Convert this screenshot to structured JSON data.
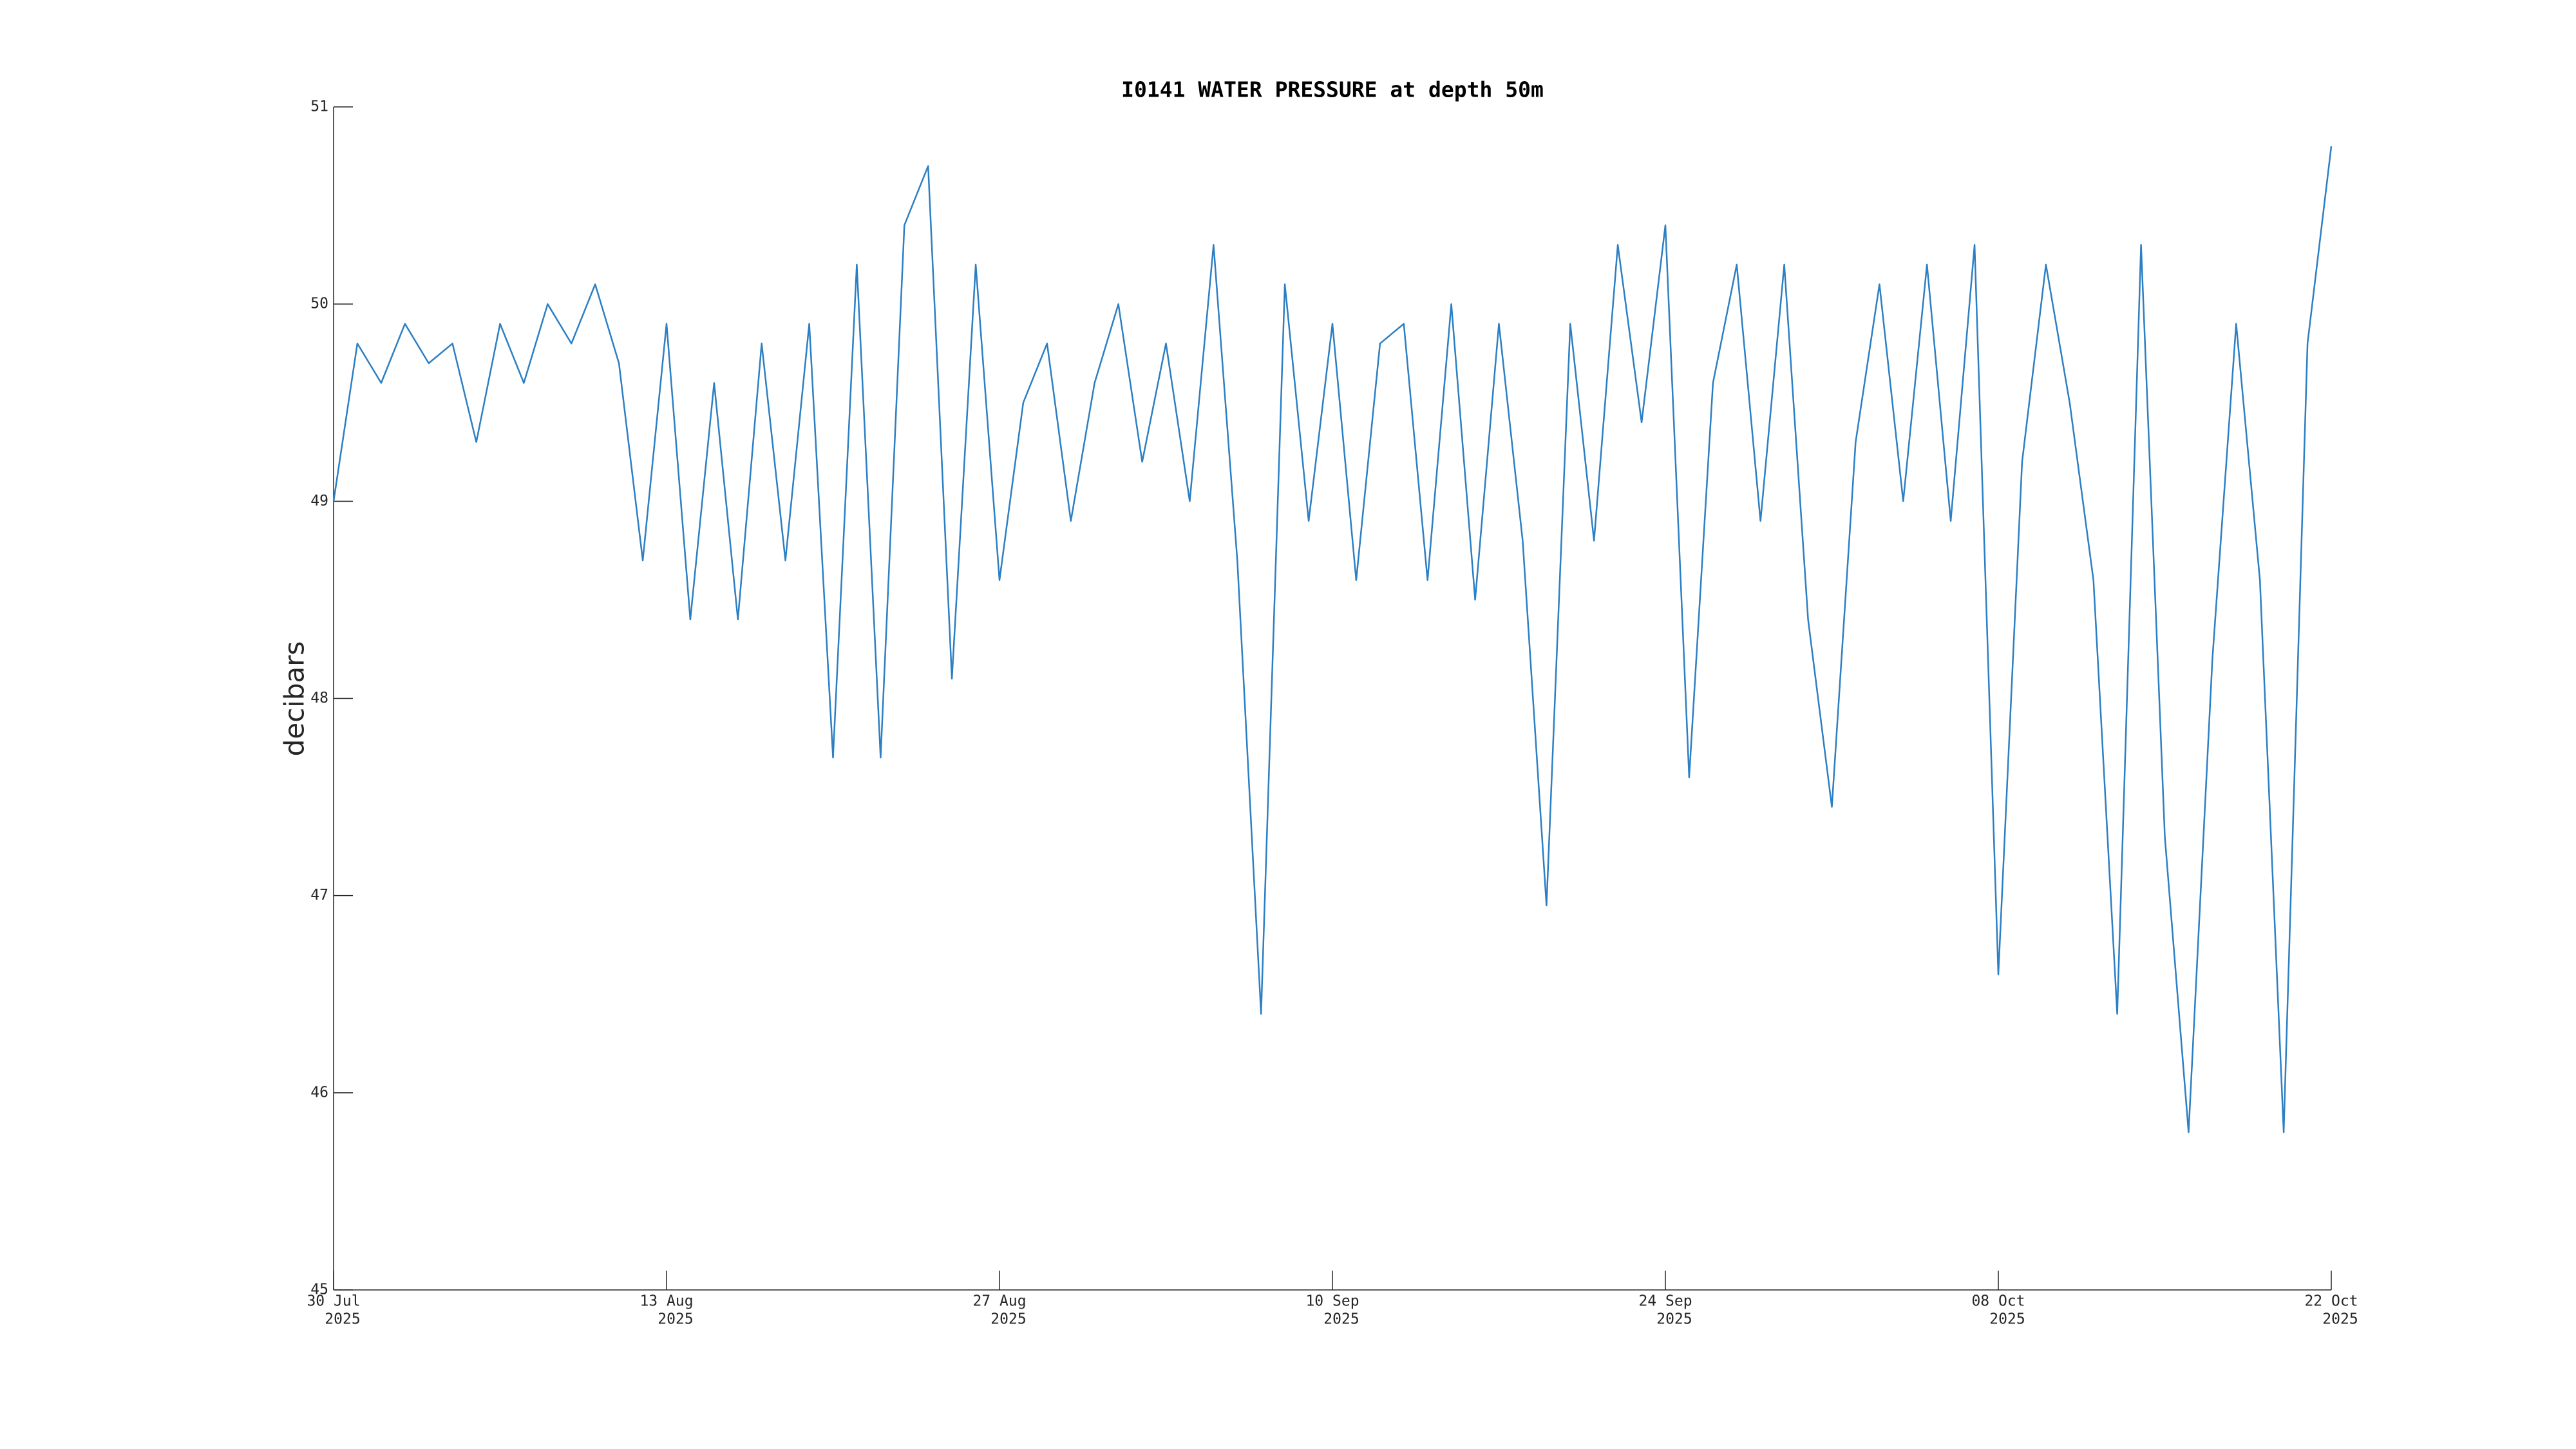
{
  "chart_data": {
    "type": "line",
    "title": "I0141 WATER PRESSURE at depth 50m",
    "y_label": "decibars",
    "color": "#2c7fc3",
    "x": [
      "2025-07-30",
      "2025-07-31",
      "2025-08-01",
      "2025-08-02",
      "2025-08-03",
      "2025-08-04",
      "2025-08-05",
      "2025-08-06",
      "2025-08-07",
      "2025-08-08",
      "2025-08-09",
      "2025-08-10",
      "2025-08-11",
      "2025-08-12",
      "2025-08-13",
      "2025-08-14",
      "2025-08-15",
      "2025-08-16",
      "2025-08-17",
      "2025-08-18",
      "2025-08-19",
      "2025-08-20",
      "2025-08-21",
      "2025-08-22",
      "2025-08-23",
      "2025-08-24",
      "2025-08-25",
      "2025-08-26",
      "2025-08-27",
      "2025-08-28",
      "2025-08-29",
      "2025-08-30",
      "2025-08-31",
      "2025-09-01",
      "2025-09-02",
      "2025-09-03",
      "2025-09-04",
      "2025-09-05",
      "2025-09-06",
      "2025-09-07",
      "2025-09-08",
      "2025-09-09",
      "2025-09-10",
      "2025-09-11",
      "2025-09-12",
      "2025-09-13",
      "2025-09-14",
      "2025-09-15",
      "2025-09-16",
      "2025-09-17",
      "2025-09-18",
      "2025-09-19",
      "2025-09-20",
      "2025-09-21",
      "2025-09-22",
      "2025-09-23",
      "2025-09-24",
      "2025-09-25",
      "2025-09-26",
      "2025-09-27",
      "2025-09-28",
      "2025-09-29",
      "2025-09-30",
      "2025-10-01",
      "2025-10-02",
      "2025-10-03",
      "2025-10-04",
      "2025-10-05",
      "2025-10-06",
      "2025-10-07",
      "2025-10-08",
      "2025-10-09",
      "2025-10-10",
      "2025-10-11",
      "2025-10-12",
      "2025-10-13",
      "2025-10-14",
      "2025-10-15",
      "2025-10-16",
      "2025-10-17",
      "2025-10-18",
      "2025-10-19",
      "2025-10-20",
      "2025-10-21",
      "2025-10-22"
    ],
    "values": [
      49.0,
      49.8,
      49.6,
      49.9,
      49.7,
      49.8,
      49.3,
      49.9,
      49.6,
      50.0,
      49.8,
      50.1,
      49.7,
      48.7,
      49.9,
      48.4,
      49.6,
      48.4,
      49.8,
      48.7,
      49.9,
      47.7,
      50.2,
      47.7,
      50.4,
      50.7,
      48.1,
      50.2,
      48.6,
      49.5,
      49.8,
      48.9,
      49.6,
      50.0,
      49.2,
      49.8,
      49.0,
      50.3,
      48.7,
      46.4,
      50.1,
      48.9,
      49.9,
      48.6,
      49.8,
      49.9,
      48.6,
      50.0,
      48.5,
      49.9,
      48.8,
      46.95,
      49.9,
      48.8,
      50.3,
      49.4,
      50.4,
      47.6,
      49.6,
      50.2,
      48.9,
      50.2,
      48.4,
      47.45,
      49.3,
      50.1,
      49.0,
      50.2,
      48.9,
      50.3,
      46.6,
      49.2,
      50.2,
      49.5,
      48.6,
      46.4,
      50.3,
      47.3,
      45.8,
      48.2,
      49.9,
      48.6,
      45.8,
      49.8,
      50.8
    ],
    "xlim": [
      "2025-07-30",
      "2025-10-22"
    ],
    "xticks": [
      {
        "value": "2025-07-30",
        "label": [
          "30 Jul",
          "2025"
        ]
      },
      {
        "value": "2025-08-13",
        "label": [
          "13 Aug",
          "2025"
        ]
      },
      {
        "value": "2025-08-27",
        "label": [
          "27 Aug",
          "2025"
        ]
      },
      {
        "value": "2025-09-10",
        "label": [
          "10 Sep",
          "2025"
        ]
      },
      {
        "value": "2025-09-24",
        "label": [
          "24 Sep",
          "2025"
        ]
      },
      {
        "value": "2025-10-08",
        "label": [
          "08 Oct",
          "2025"
        ]
      },
      {
        "value": "2025-10-22",
        "label": [
          "22 Oct",
          "2025"
        ]
      }
    ],
    "ylim": [
      45,
      51
    ],
    "yticks": [
      45,
      46,
      47,
      48,
      49,
      50,
      51
    ],
    "grid": false
  }
}
